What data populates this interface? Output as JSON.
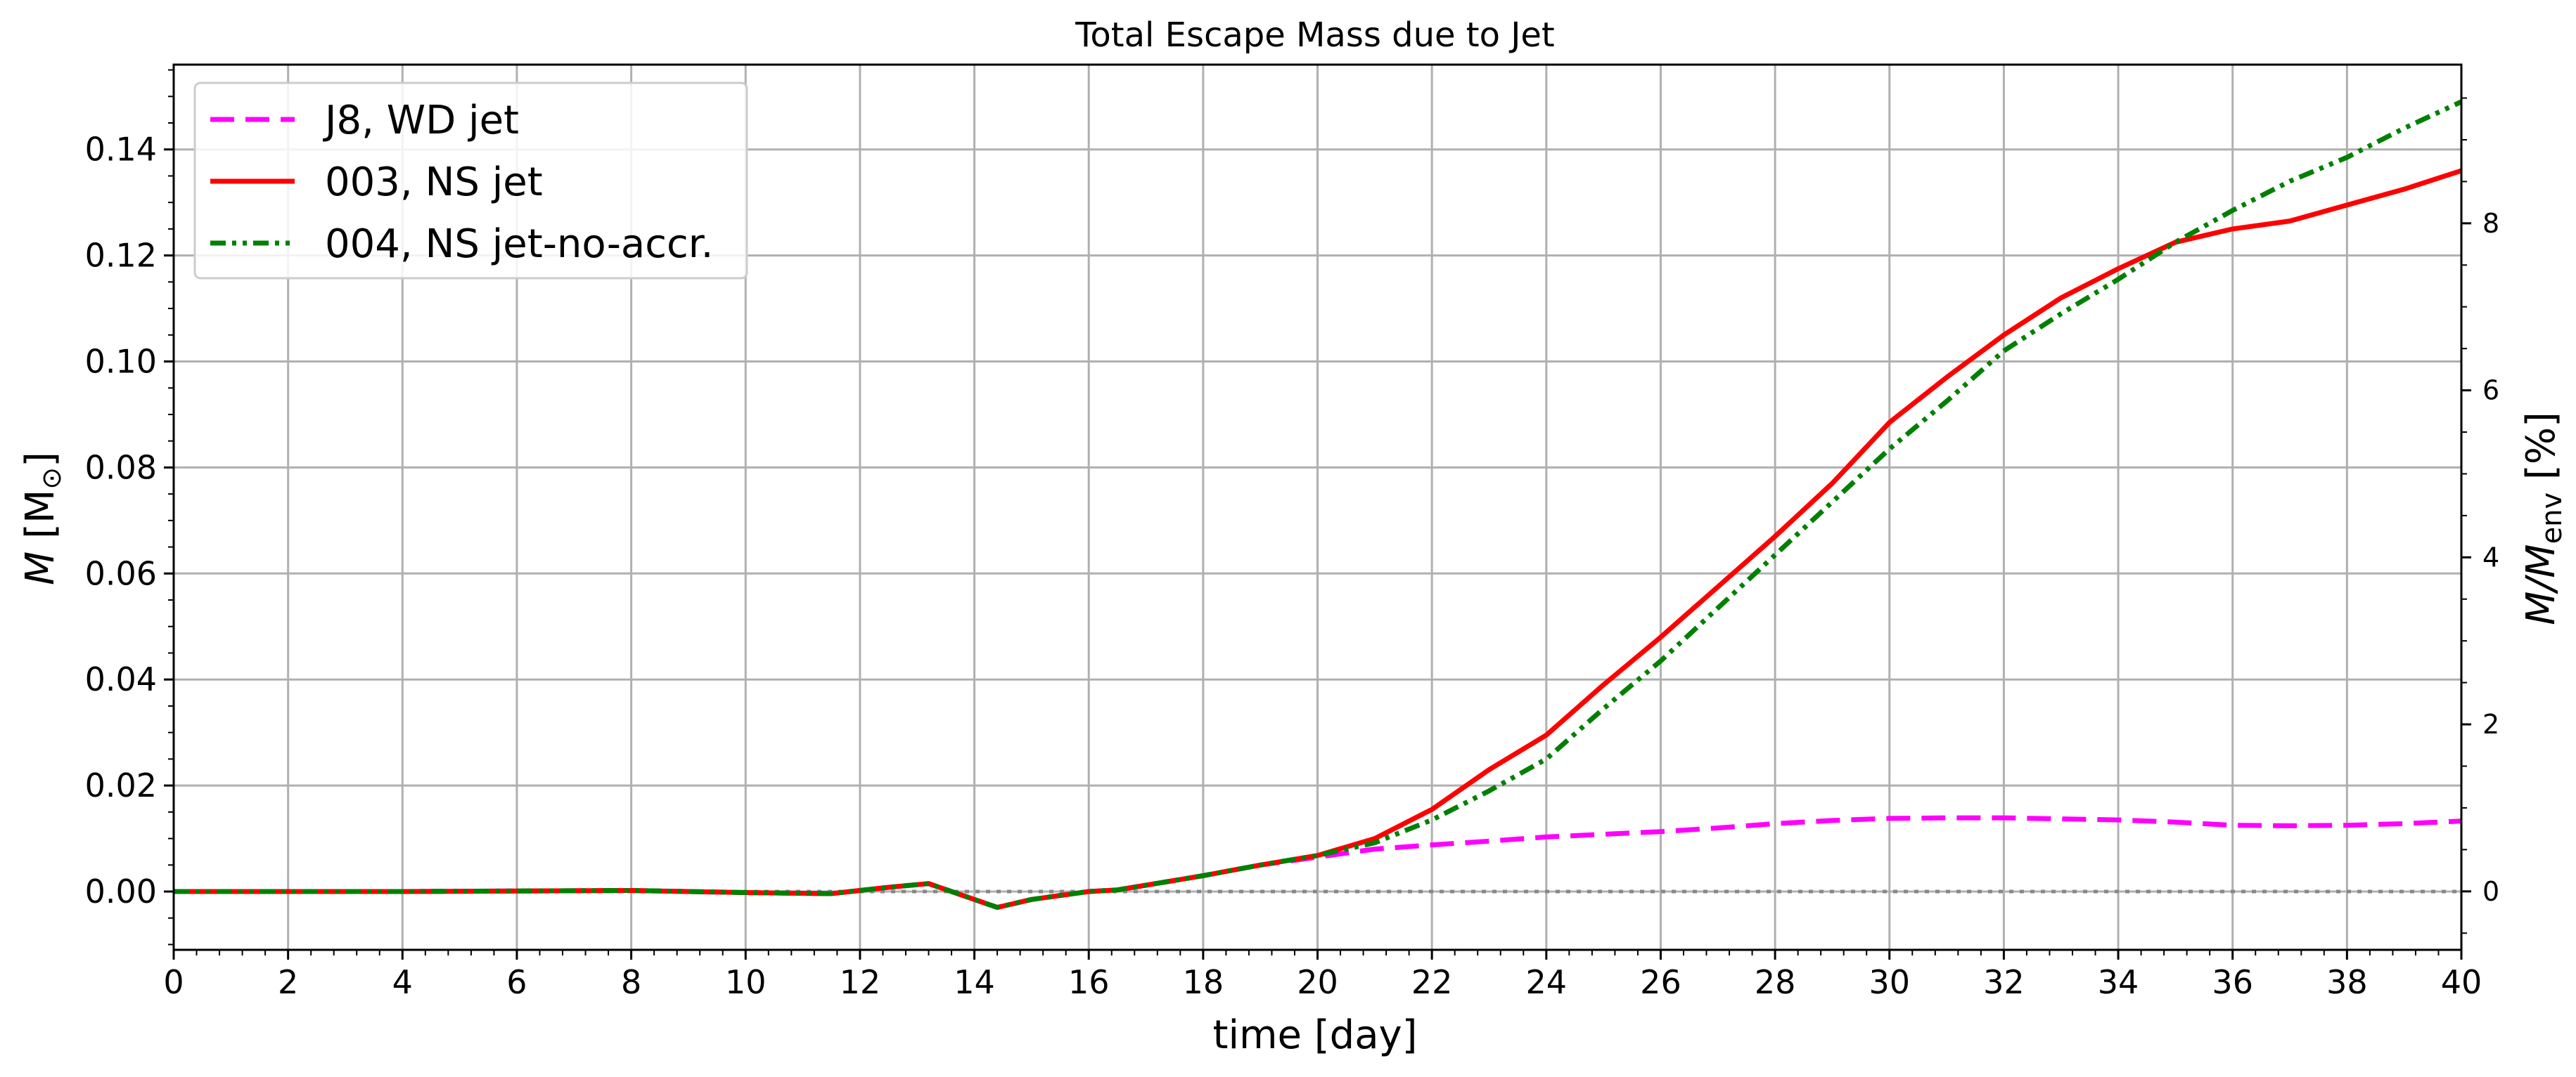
{
  "chart_data": {
    "type": "line",
    "title": "Total Escape Mass due to Jet",
    "xlabel": "time [day]",
    "ylabel": {
      "italic": "M",
      "rest": " [M",
      "sub": "⊙",
      "end": "]"
    },
    "ylabel_right": {
      "italic": "M/M",
      "sub": "env",
      "end": " [%]"
    },
    "xlim": [
      0,
      40
    ],
    "ylim": [
      -0.011,
      0.156
    ],
    "ylim_right_percent": [
      -0.7,
      9.9
    ],
    "xticks": [
      0,
      2,
      4,
      6,
      8,
      10,
      12,
      14,
      16,
      18,
      20,
      22,
      24,
      26,
      28,
      30,
      32,
      34,
      36,
      38,
      40
    ],
    "yticks": [
      "0.00",
      "0.02",
      "0.04",
      "0.06",
      "0.08",
      "0.10",
      "0.12",
      "0.14"
    ],
    "yticks_right": [
      "0",
      "2",
      "4",
      "6",
      "8"
    ],
    "grid": true,
    "legend_position": "top-left",
    "reference_line_y": 0,
    "series": [
      {
        "name": "J8, WD jet",
        "color": "#ff00ff",
        "style": "dashed",
        "x": [
          0,
          4,
          8,
          10,
          11.5,
          12.5,
          13.2,
          14,
          14.4,
          15,
          16,
          16.5,
          17,
          18,
          19,
          20,
          21,
          22,
          23,
          24,
          25,
          26,
          27,
          28,
          29,
          30,
          31,
          32,
          33,
          34,
          35,
          36,
          37,
          38,
          39,
          40
        ],
        "y": [
          0,
          0,
          0.0002,
          -0.0002,
          -0.0004,
          0.0008,
          0.0015,
          -0.0015,
          -0.003,
          -0.0015,
          0.0,
          0.0003,
          0.0012,
          0.003,
          0.005,
          0.0065,
          0.008,
          0.0088,
          0.0095,
          0.0103,
          0.0108,
          0.0113,
          0.012,
          0.0128,
          0.0134,
          0.0138,
          0.0139,
          0.0139,
          0.0137,
          0.0135,
          0.0131,
          0.0125,
          0.0124,
          0.0125,
          0.0128,
          0.0133
        ]
      },
      {
        "name": "003, NS jet",
        "color": "#ff0000",
        "style": "solid",
        "x": [
          0,
          4,
          8,
          10,
          11.5,
          12.5,
          13.2,
          14,
          14.4,
          15,
          16,
          16.5,
          17,
          18,
          19,
          20,
          21,
          22,
          23,
          24,
          25,
          26,
          27,
          28,
          29,
          30,
          31,
          32,
          33,
          34,
          35,
          36,
          37,
          38,
          39,
          40
        ],
        "y": [
          0,
          0,
          0.0002,
          -0.0002,
          -0.0004,
          0.0008,
          0.0015,
          -0.0015,
          -0.003,
          -0.0015,
          0.0,
          0.0003,
          0.0012,
          0.003,
          0.005,
          0.0068,
          0.01,
          0.0155,
          0.023,
          0.0295,
          0.039,
          0.048,
          0.0575,
          0.067,
          0.077,
          0.0885,
          0.097,
          0.105,
          0.112,
          0.1175,
          0.1225,
          0.125,
          0.1265,
          0.1295,
          0.1325,
          0.136
        ]
      },
      {
        "name": "004, NS jet-no-accr.",
        "color": "#008000",
        "style": "dashdotdot",
        "x": [
          0,
          4,
          8,
          10,
          11.5,
          12.5,
          13.2,
          14,
          14.4,
          15,
          16,
          16.5,
          17,
          18,
          19,
          20,
          21,
          22,
          23,
          24,
          25,
          26,
          27,
          28,
          29,
          30,
          31,
          32,
          33,
          34,
          35,
          36,
          37,
          38,
          39,
          40
        ],
        "y": [
          0,
          0,
          0.0002,
          -0.0002,
          -0.0004,
          0.0008,
          0.0015,
          -0.0015,
          -0.003,
          -0.0015,
          0.0,
          0.0003,
          0.0012,
          0.003,
          0.005,
          0.0068,
          0.0092,
          0.0135,
          0.019,
          0.025,
          0.0345,
          0.0435,
          0.0535,
          0.0635,
          0.0735,
          0.0835,
          0.0925,
          0.102,
          0.109,
          0.1155,
          0.1225,
          0.1285,
          0.134,
          0.1385,
          0.144,
          0.149
        ]
      }
    ]
  }
}
